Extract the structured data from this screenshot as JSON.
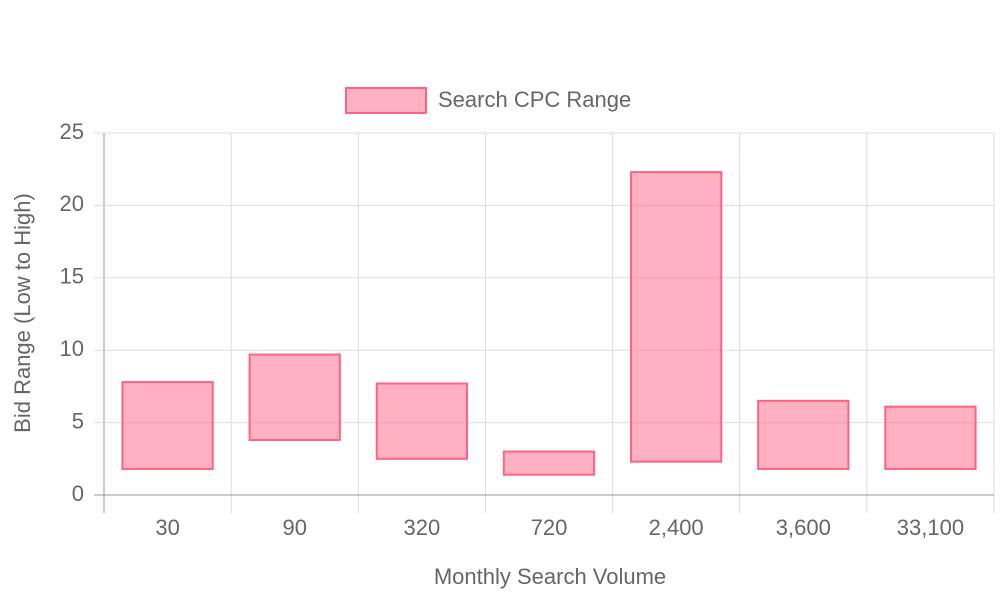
{
  "chart_data": {
    "type": "floating-bar",
    "x_label": "Monthly Search Volume",
    "y_label": "Bid Range (Low to High)",
    "categories": [
      "30",
      "90",
      "320",
      "720",
      "2,400",
      "3,600",
      "33,100"
    ],
    "series": [
      {
        "name": "Search CPC Range",
        "color": "#ff6384",
        "values": [
          [
            1.8,
            7.8
          ],
          [
            3.8,
            9.7
          ],
          [
            2.5,
            7.7
          ],
          [
            1.4,
            3.0
          ],
          [
            2.3,
            22.3
          ],
          [
            1.8,
            6.5
          ],
          [
            1.8,
            6.1
          ]
        ]
      }
    ],
    "ylim": [
      0,
      25
    ],
    "yticks": [
      0,
      5,
      10,
      15,
      20,
      25
    ],
    "grid": true,
    "legend": "top"
  }
}
